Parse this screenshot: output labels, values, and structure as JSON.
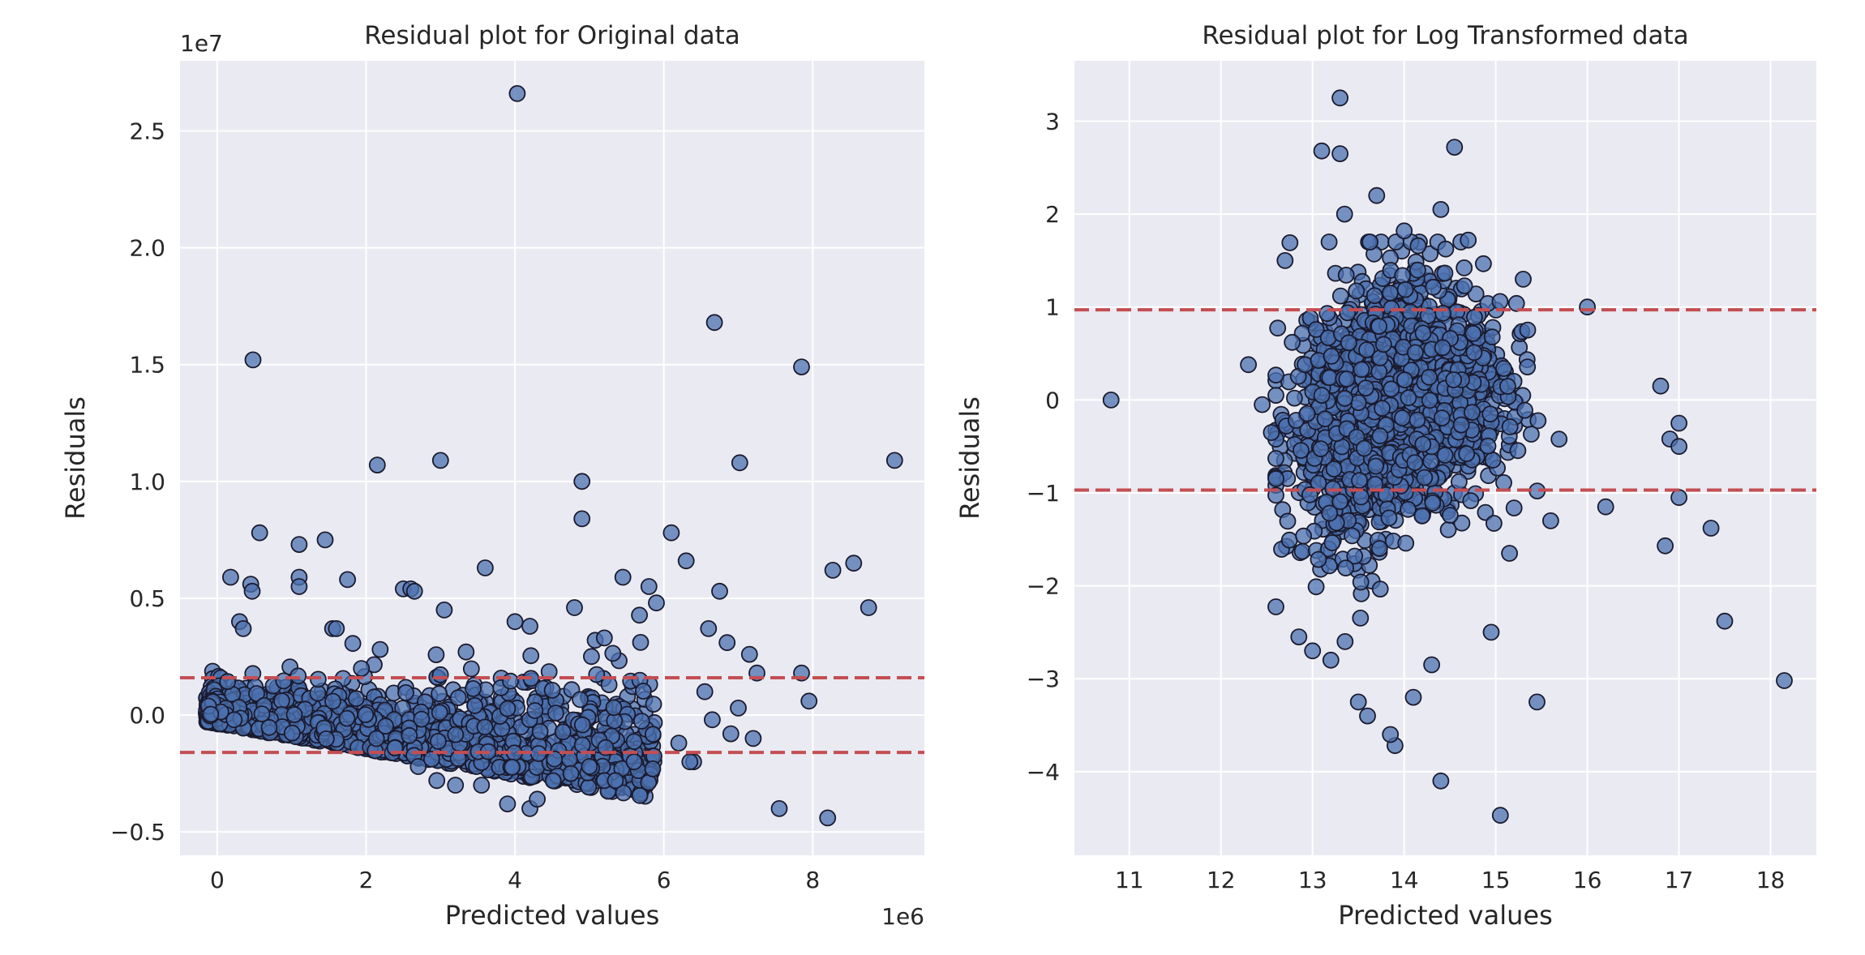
{
  "chart_data": [
    {
      "type": "scatter",
      "title": "Residual plot for Original data",
      "xlabel": "Predicted values",
      "ylabel": "Residuals",
      "x_offset_label": "1e6",
      "y_offset_label": "1e7",
      "xlim": [
        -0.5,
        9.5
      ],
      "ylim": [
        -0.6,
        2.8
      ],
      "xticks": [
        0,
        2,
        4,
        6,
        8
      ],
      "xtick_labels": [
        "0",
        "2",
        "4",
        "6",
        "8"
      ],
      "yticks": [
        -0.5,
        0.0,
        0.5,
        1.0,
        1.5,
        2.0,
        2.5
      ],
      "ytick_labels": [
        "−0.5",
        "0.0",
        "0.5",
        "1.0",
        "1.5",
        "2.0",
        "2.5"
      ],
      "grid": true,
      "background": "#eaeaf2",
      "point_color": "#4c72b0",
      "point_edge": "#1a1a2e",
      "reference_lines": [
        {
          "y": 0.16,
          "color": "#c44e52",
          "style": "dashed"
        },
        {
          "y": -0.16,
          "color": "#c44e52",
          "style": "dashed"
        }
      ],
      "points": [
        [
          4.03,
          2.66
        ],
        [
          6.68,
          1.68
        ],
        [
          0.48,
          1.52
        ],
        [
          7.85,
          1.49
        ],
        [
          3.0,
          1.09
        ],
        [
          7.02,
          1.08
        ],
        [
          9.1,
          1.09
        ],
        [
          2.15,
          1.07
        ],
        [
          4.9,
          1.0
        ],
        [
          4.9,
          0.84
        ],
        [
          0.57,
          0.78
        ],
        [
          1.1,
          0.73
        ],
        [
          1.45,
          0.75
        ],
        [
          6.1,
          0.78
        ],
        [
          6.3,
          0.66
        ],
        [
          8.55,
          0.65
        ],
        [
          8.27,
          0.62
        ],
        [
          3.6,
          0.63
        ],
        [
          0.18,
          0.59
        ],
        [
          0.45,
          0.56
        ],
        [
          0.47,
          0.53
        ],
        [
          1.1,
          0.59
        ],
        [
          1.1,
          0.55
        ],
        [
          1.75,
          0.58
        ],
        [
          2.5,
          0.54
        ],
        [
          2.6,
          0.54
        ],
        [
          2.65,
          0.53
        ],
        [
          5.45,
          0.59
        ],
        [
          5.8,
          0.55
        ],
        [
          6.75,
          0.53
        ],
        [
          8.75,
          0.46
        ],
        [
          5.9,
          0.48
        ],
        [
          6.6,
          0.37
        ],
        [
          6.85,
          0.31
        ],
        [
          7.15,
          0.26
        ],
        [
          0.3,
          0.4
        ],
        [
          0.35,
          0.37
        ],
        [
          1.55,
          0.37
        ],
        [
          1.6,
          0.37
        ],
        [
          3.05,
          0.45
        ],
        [
          4.0,
          0.4
        ],
        [
          4.2,
          0.38
        ],
        [
          4.8,
          0.46
        ],
        [
          5.2,
          0.33
        ],
        [
          7.25,
          0.18
        ],
        [
          7.85,
          0.18
        ],
        [
          7.95,
          0.06
        ],
        [
          7.2,
          -0.1
        ],
        [
          6.4,
          -0.2
        ],
        [
          7.55,
          -0.4
        ],
        [
          8.2,
          -0.44
        ],
        [
          5.85,
          -0.23
        ],
        [
          3.9,
          -0.38
        ],
        [
          4.2,
          -0.4
        ],
        [
          4.3,
          -0.36
        ],
        [
          4.75,
          -0.25
        ],
        [
          5.2,
          -0.28
        ],
        [
          5.35,
          -0.28
        ],
        [
          6.2,
          -0.12
        ],
        [
          6.55,
          0.1
        ],
        [
          6.65,
          -0.02
        ],
        [
          7.0,
          0.03
        ],
        [
          6.9,
          -0.08
        ],
        [
          6.35,
          -0.2
        ],
        [
          5.6,
          -0.2
        ],
        [
          5.0,
          -0.22
        ],
        [
          3.55,
          -0.3
        ],
        [
          3.2,
          -0.3
        ],
        [
          2.95,
          -0.28
        ],
        [
          2.7,
          -0.22
        ]
      ]
    },
    {
      "type": "scatter",
      "title": "Residual plot for Log Transformed data",
      "xlabel": "Predicted values",
      "ylabel": "Residuals",
      "xlim": [
        10.4,
        18.5
      ],
      "ylim": [
        -4.9,
        3.65
      ],
      "xticks": [
        11,
        12,
        13,
        14,
        15,
        16,
        17,
        18
      ],
      "xtick_labels": [
        "11",
        "12",
        "13",
        "14",
        "15",
        "16",
        "17",
        "18"
      ],
      "yticks": [
        -4,
        -3,
        -2,
        -1,
        0,
        1,
        2,
        3
      ],
      "ytick_labels": [
        "−4",
        "−3",
        "−2",
        "−1",
        "0",
        "1",
        "2",
        "3"
      ],
      "grid": true,
      "background": "#eaeaf2",
      "point_color": "#4c72b0",
      "point_edge": "#1a1a2e",
      "reference_lines": [
        {
          "y": 0.97,
          "color": "#c44e52",
          "style": "dashed"
        },
        {
          "y": -0.97,
          "color": "#c44e52",
          "style": "dashed"
        }
      ],
      "points": [
        [
          10.8,
          0.0
        ],
        [
          13.3,
          3.25
        ],
        [
          13.1,
          2.68
        ],
        [
          13.3,
          2.65
        ],
        [
          14.55,
          2.72
        ],
        [
          13.35,
          2.0
        ],
        [
          13.7,
          2.2
        ],
        [
          14.4,
          2.05
        ],
        [
          14.0,
          1.82
        ],
        [
          14.7,
          1.72
        ],
        [
          12.7,
          1.5
        ],
        [
          12.3,
          0.38
        ],
        [
          12.55,
          -0.35
        ],
        [
          12.45,
          -0.05
        ],
        [
          16.8,
          0.15
        ],
        [
          16.9,
          -0.42
        ],
        [
          17.0,
          -0.25
        ],
        [
          17.0,
          -0.5
        ],
        [
          16.85,
          -1.57
        ],
        [
          17.35,
          -1.38
        ],
        [
          17.0,
          -1.05
        ],
        [
          17.5,
          -2.38
        ],
        [
          18.15,
          -3.02
        ],
        [
          15.45,
          -3.25
        ],
        [
          15.05,
          -4.47
        ],
        [
          14.4,
          -4.1
        ],
        [
          13.9,
          -3.72
        ],
        [
          13.85,
          -3.6
        ],
        [
          15.15,
          -1.65
        ],
        [
          14.95,
          -2.5
        ],
        [
          15.6,
          -1.3
        ],
        [
          16.2,
          -1.15
        ],
        [
          16.0,
          1.0
        ],
        [
          15.3,
          1.3
        ],
        [
          12.85,
          -2.55
        ],
        [
          13.0,
          -2.7
        ],
        [
          13.2,
          -2.8
        ],
        [
          13.6,
          -3.4
        ],
        [
          13.5,
          -3.25
        ],
        [
          14.1,
          -3.2
        ],
        [
          14.3,
          -2.85
        ]
      ]
    }
  ]
}
